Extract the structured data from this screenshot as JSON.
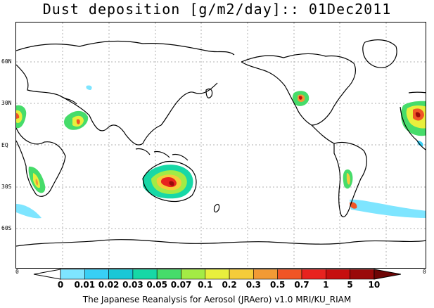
{
  "title": "Dust deposition [g/m2/day]:: 01Dec2011",
  "lat_labels": [
    "60N",
    "30N",
    "EQ",
    "30S",
    "60S"
  ],
  "map_edge_labels": [
    "0",
    "0"
  ],
  "colorbar": {
    "labels": [
      "0",
      "0.01",
      "0.02",
      "0.03",
      "0.05",
      "0.07",
      "0.1",
      "0.2",
      "0.3",
      "0.5",
      "0.7",
      "1",
      "5",
      "10"
    ],
    "colors": [
      "#ffffff",
      "#7ee5ff",
      "#38cff5",
      "#19c7d6",
      "#17d8a6",
      "#46dc6a",
      "#a3eb45",
      "#e8ef3d",
      "#f5cc3a",
      "#f29a35",
      "#f05526",
      "#e8231f",
      "#c60f0f",
      "#9a0a0a",
      "#6e0505"
    ]
  },
  "footer": "The Japanese Reanalysis for Aerosol (JRAero) v1.0 MRI/KU_RIAM"
}
